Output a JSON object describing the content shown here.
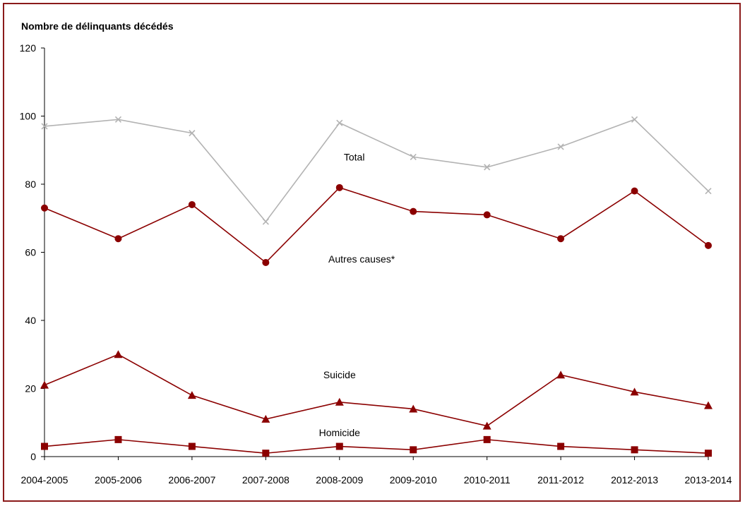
{
  "chart_data": {
    "type": "line",
    "ylabel": "Nombre de délinquants décédés",
    "xlabel": "",
    "ylim": [
      0,
      120
    ],
    "yticks": [
      0,
      20,
      40,
      60,
      80,
      100,
      120
    ],
    "grid": false,
    "categories": [
      "2004-2005",
      "2005-2006",
      "2006-2007",
      "2007-2008",
      "2008-2009",
      "2009-2010",
      "2010-2011",
      "2011-2012",
      "2012-2013",
      "2013-2014"
    ],
    "series": [
      {
        "name": "Total",
        "marker": "x",
        "color": "#b3b3b3",
        "values": [
          97,
          99,
          95,
          69,
          98,
          88,
          85,
          91,
          99,
          78
        ]
      },
      {
        "name": "Autres causes*",
        "marker": "circle",
        "color": "#8b0000",
        "values": [
          73,
          64,
          74,
          57,
          79,
          72,
          71,
          64,
          78,
          62
        ]
      },
      {
        "name": "Suicide",
        "marker": "triangle",
        "color": "#8b0000",
        "values": [
          21,
          30,
          18,
          11,
          16,
          14,
          9,
          24,
          19,
          15
        ]
      },
      {
        "name": "Homicide",
        "marker": "square",
        "color": "#8b0000",
        "values": [
          3,
          5,
          3,
          1,
          3,
          2,
          5,
          3,
          2,
          1
        ]
      }
    ]
  }
}
